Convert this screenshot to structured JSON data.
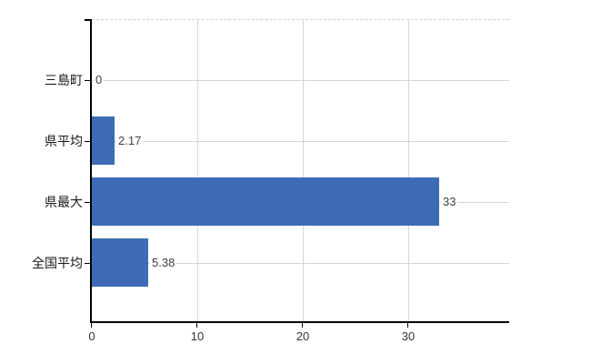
{
  "chart_data": {
    "type": "bar",
    "orientation": "horizontal",
    "title": "",
    "xlabel": "",
    "ylabel": "",
    "categories": [
      "三島町",
      "県平均",
      "県最大",
      "全国平均"
    ],
    "values": [
      0,
      2.17,
      33,
      5.38
    ],
    "value_labels": [
      "0",
      "2.17",
      "33",
      "5.38"
    ],
    "x_ticks": [
      0,
      10,
      20,
      30
    ],
    "x_tick_labels": [
      "0",
      "10",
      "20",
      "30"
    ],
    "xlim": [
      0,
      39.6
    ],
    "grid": true,
    "legend": false,
    "plot_top_border_style": "dashed",
    "colors": {
      "bar": "#3D6CB4",
      "grid": "#D6D6D6",
      "plot_border_dashed": "#D0CCD4",
      "axis": "#000000",
      "tick_label": "#333333",
      "value_label": "#404040",
      "category_label": "#1A1A1A",
      "background": "#FFFFFF"
    }
  }
}
